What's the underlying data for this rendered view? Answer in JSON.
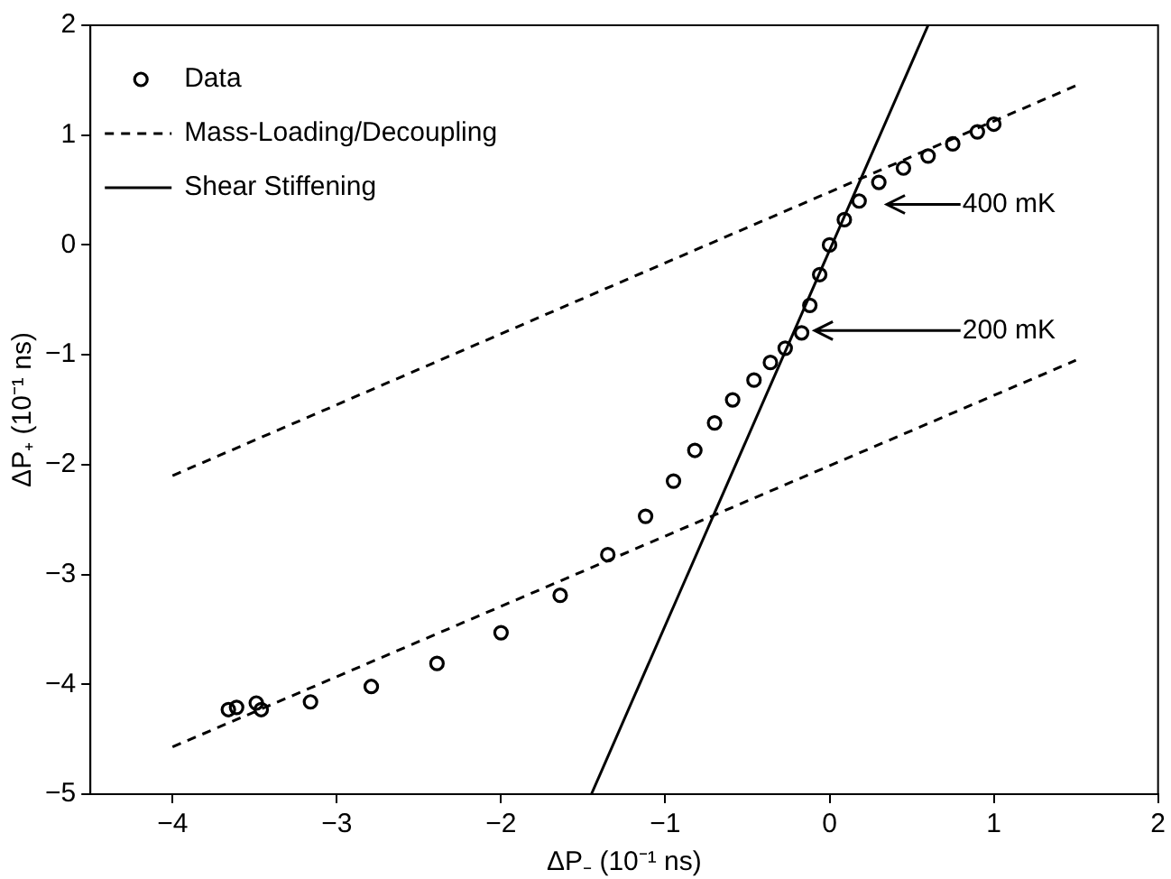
{
  "chart_data": {
    "type": "scatter",
    "xlabel": "ΔP₋ (10⁻¹ ns)",
    "ylabel": "ΔP₊ (10⁻¹ ns)",
    "xlim": [
      -4.5,
      2
    ],
    "xticks": [
      -4,
      -3,
      -2,
      -1,
      0,
      1,
      2
    ],
    "ylim": [
      -5,
      2
    ],
    "yticks": [
      -5,
      -4,
      -3,
      -2,
      -1,
      0,
      1,
      2
    ],
    "grid": false,
    "legend": "top left",
    "series": [
      {
        "name": "Data",
        "type": "scatter",
        "marker": "circle",
        "color": "#000000",
        "x": [
          -3.66,
          -3.61,
          -3.49,
          -3.46,
          -3.16,
          -2.79,
          -2.39,
          -2.0,
          -1.64,
          -1.35,
          -1.12,
          -0.95,
          -0.82,
          -0.7,
          -0.59,
          -0.46,
          -0.36,
          -0.27,
          -0.17,
          -0.12,
          -0.06,
          0.0,
          0.09,
          0.18,
          0.3,
          0.45,
          0.6,
          0.75,
          0.9,
          1.0
        ],
        "values": [
          -4.23,
          -4.21,
          -4.17,
          -4.23,
          -4.16,
          -4.02,
          -3.81,
          -3.53,
          -3.19,
          -2.82,
          -2.47,
          -2.15,
          -1.87,
          -1.62,
          -1.41,
          -1.23,
          -1.07,
          -0.94,
          -0.8,
          -0.55,
          -0.27,
          0.0,
          0.23,
          0.4,
          0.57,
          0.7,
          0.81,
          0.92,
          1.03,
          1.1
        ]
      },
      {
        "name": "Mass-Loading/Decoupling",
        "type": "line",
        "line_style": "dashed",
        "marker": "none",
        "color": "#000000",
        "x": [
          -4,
          1.5
        ],
        "values": [
          -2.1,
          1.45
        ]
      },
      {
        "type": "line",
        "line_style": "dashed",
        "marker": "none",
        "color": "#000000",
        "x": [
          -4,
          1.5
        ],
        "values": [
          -4.57,
          -1.05
        ]
      },
      {
        "name": "Shear Stiffening",
        "type": "line",
        "line_style": "solid",
        "marker": "none",
        "color": "#000000",
        "x": [
          -1.45,
          0.6
        ],
        "values": [
          -5,
          2
        ]
      }
    ],
    "annotations": [
      "400 mK",
      {
        "text": "200 mK",
        "x": -0.09,
        "y": -0.78
      }
    ]
  }
}
